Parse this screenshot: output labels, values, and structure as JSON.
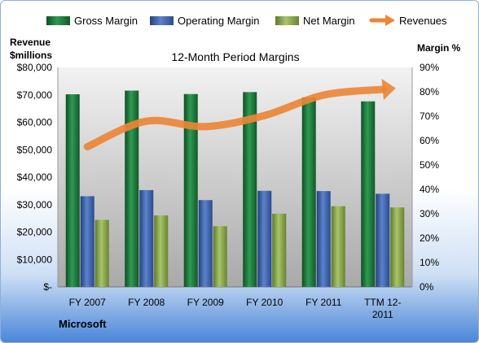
{
  "chart_data": {
    "type": "bar",
    "title": "12-Month Period Margins",
    "company": "Microsoft",
    "left_axis_label_line1": "Revenue",
    "left_axis_label_line2": "$millions",
    "right_axis_label": "Margin %",
    "categories": [
      [
        "FY 2007"
      ],
      [
        "FY 2008"
      ],
      [
        "FY 2009"
      ],
      [
        "FY 2010"
      ],
      [
        "FY 2011"
      ],
      [
        "TTM 12-",
        "2011"
      ]
    ],
    "left_ticks": [
      "$-",
      "$10,000",
      "$20,000",
      "$30,000",
      "$40,000",
      "$50,000",
      "$60,000",
      "$70,000",
      "$80,000"
    ],
    "right_ticks": [
      "0%",
      "10%",
      "20%",
      "30%",
      "40%",
      "50%",
      "60%",
      "70%",
      "80%",
      "90%"
    ],
    "ylim_left": [
      0,
      80000
    ],
    "ylim_right": [
      0,
      90
    ],
    "legend_position": "top",
    "grid": false,
    "series": [
      {
        "name": "Gross Margin",
        "axis": "right",
        "kind": "bar",
        "color": "#1f7a3c",
        "values": [
          79,
          80.5,
          79.1,
          79.9,
          77.7,
          76.1
        ]
      },
      {
        "name": "Operating Margin",
        "axis": "right",
        "kind": "bar",
        "color": "#3f66b2",
        "values": [
          37.2,
          39.7,
          35.6,
          39.4,
          39.3,
          38.2
        ]
      },
      {
        "name": "Net Margin",
        "axis": "right",
        "kind": "bar",
        "color": "#8aa84a",
        "values": [
          27.5,
          29.3,
          24.9,
          30.0,
          33.1,
          32.6
        ]
      },
      {
        "name": "Revenues",
        "axis": "left",
        "kind": "line",
        "color": "#ec8536",
        "values": [
          51122,
          60420,
          58437,
          62484,
          69943,
          72000
        ]
      }
    ]
  }
}
